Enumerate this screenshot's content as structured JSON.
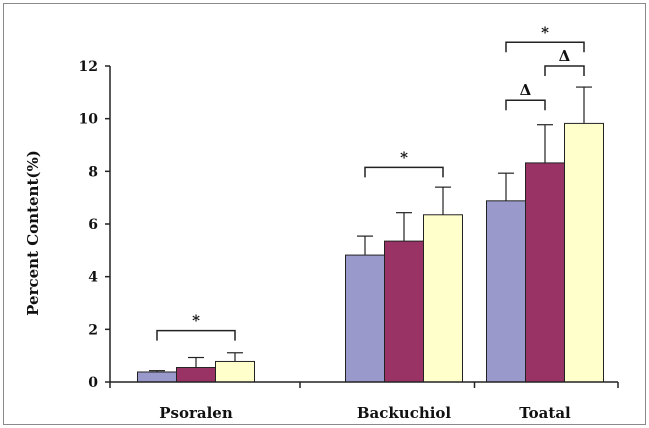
{
  "chart_data": {
    "type": "bar",
    "title": "",
    "xlabel": "",
    "ylabel": "Percent Content(%)",
    "ylim": [
      0,
      12
    ],
    "yticks": [
      0,
      2,
      4,
      6,
      8,
      10,
      12
    ],
    "grid": false,
    "legend": "none",
    "categories": [
      "Psoralen",
      "Backuchiol",
      "Toatal"
    ],
    "series": [
      {
        "color": "#9999cc",
        "values": [
          0.38,
          4.82,
          6.88
        ],
        "errors": [
          0.05,
          0.72,
          1.05
        ]
      },
      {
        "color": "#993366",
        "values": [
          0.55,
          5.35,
          8.32
        ],
        "errors": [
          0.38,
          1.08,
          1.45
        ]
      },
      {
        "color": "#ffffcc",
        "values": [
          0.78,
          6.35,
          9.82
        ],
        "errors": [
          0.33,
          1.05,
          1.38
        ]
      }
    ],
    "annotations": [
      {
        "label": "*",
        "category": 0,
        "from_series": 0,
        "to_series": 2,
        "y": 1.95
      },
      {
        "label": "*",
        "category": 1,
        "from_series": 0,
        "to_series": 2,
        "y": 8.15
      },
      {
        "label": "*",
        "category": 2,
        "from_series": 0,
        "to_series": 2,
        "y": 12.9
      },
      {
        "label": "Δ",
        "category": 2,
        "from_series": 0,
        "to_series": 1,
        "y": 10.7
      },
      {
        "label": "Δ",
        "category": 2,
        "from_series": 1,
        "to_series": 2,
        "y": 12.0
      }
    ]
  }
}
